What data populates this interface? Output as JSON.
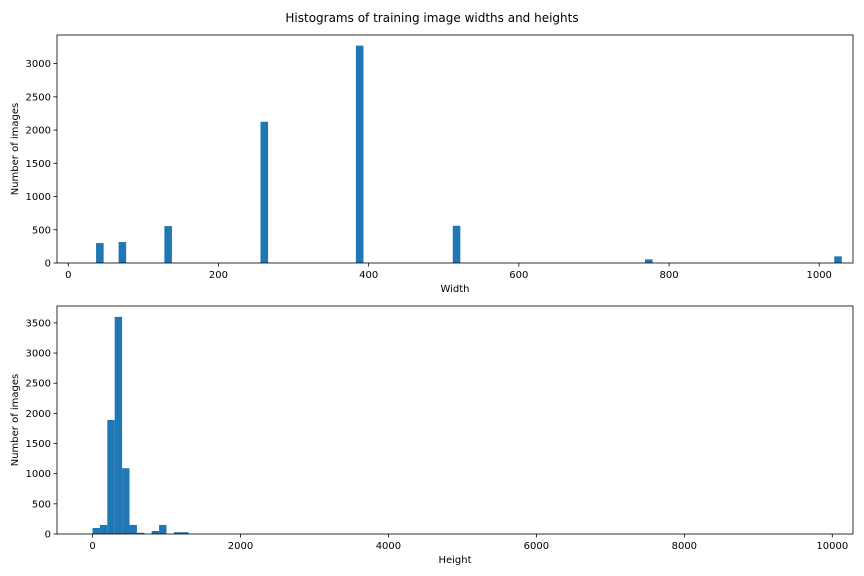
{
  "figure": {
    "suptitle": "Histograms of training image widths and heights"
  },
  "chart_data": [
    {
      "type": "bar",
      "xlabel": "Width",
      "ylabel": "Number of images",
      "xlim": [
        -15,
        1045
      ],
      "ylim": [
        0,
        3430
      ],
      "xticks": [
        0,
        200,
        400,
        600,
        800,
        1000
      ],
      "yticks": [
        0,
        500,
        1000,
        1500,
        2000,
        2500,
        3000
      ],
      "bar_color": "#1f77b4",
      "bin_width": 10.1,
      "bins": [
        {
          "x": 37,
          "value": 300
        },
        {
          "x": 67,
          "value": 315
        },
        {
          "x": 128,
          "value": 555
        },
        {
          "x": 256,
          "value": 2125
        },
        {
          "x": 383,
          "value": 3270
        },
        {
          "x": 512,
          "value": 560
        },
        {
          "x": 768,
          "value": 55
        },
        {
          "x": 1020,
          "value": 100
        }
      ]
    },
    {
      "type": "bar",
      "xlabel": "Height",
      "ylabel": "Number of images",
      "xlim": [
        -480,
        10280
      ],
      "ylim": [
        0,
        3780
      ],
      "xticks": [
        0,
        2000,
        4000,
        6000,
        8000,
        10000
      ],
      "yticks": [
        0,
        500,
        1000,
        1500,
        2000,
        2500,
        3000,
        3500
      ],
      "bar_color": "#1f77b4",
      "bin_width": 100,
      "bins": [
        {
          "x": 0,
          "value": 100
        },
        {
          "x": 100,
          "value": 150
        },
        {
          "x": 200,
          "value": 1890
        },
        {
          "x": 300,
          "value": 3600
        },
        {
          "x": 400,
          "value": 1090
        },
        {
          "x": 500,
          "value": 150
        },
        {
          "x": 600,
          "value": 20
        },
        {
          "x": 800,
          "value": 50
        },
        {
          "x": 900,
          "value": 150
        },
        {
          "x": 1100,
          "value": 30
        },
        {
          "x": 1200,
          "value": 30
        }
      ]
    }
  ]
}
